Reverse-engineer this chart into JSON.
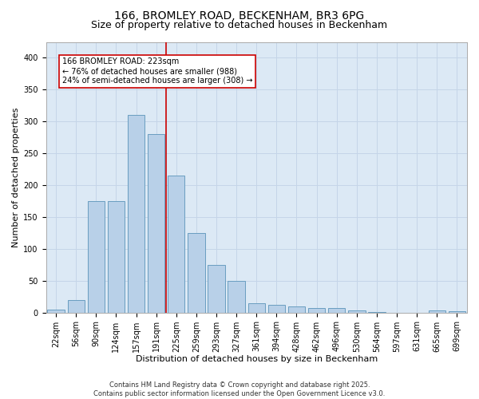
{
  "title_line1": "166, BROMLEY ROAD, BECKENHAM, BR3 6PG",
  "title_line2": "Size of property relative to detached houses in Beckenham",
  "xlabel": "Distribution of detached houses by size in Beckenham",
  "ylabel": "Number of detached properties",
  "categories": [
    "22sqm",
    "56sqm",
    "90sqm",
    "124sqm",
    "157sqm",
    "191sqm",
    "225sqm",
    "259sqm",
    "293sqm",
    "327sqm",
    "361sqm",
    "394sqm",
    "428sqm",
    "462sqm",
    "496sqm",
    "530sqm",
    "564sqm",
    "597sqm",
    "631sqm",
    "665sqm",
    "699sqm"
  ],
  "values": [
    5,
    20,
    175,
    175,
    310,
    280,
    215,
    125,
    75,
    50,
    14,
    12,
    10,
    7,
    7,
    3,
    1,
    0,
    0,
    3,
    2
  ],
  "bar_color": "#b8d0e8",
  "bar_edge_color": "#6a9ec0",
  "vline_color": "#cc0000",
  "annotation_text": "166 BROMLEY ROAD: 223sqm\n← 76% of detached houses are smaller (988)\n24% of semi-detached houses are larger (308) →",
  "annotation_box_color": "white",
  "annotation_box_edge_color": "#cc0000",
  "ylim": [
    0,
    425
  ],
  "yticks": [
    0,
    50,
    100,
    150,
    200,
    250,
    300,
    350,
    400
  ],
  "grid_color": "#c5d5e8",
  "background_color": "#dce9f5",
  "footer_text": "Contains HM Land Registry data © Crown copyright and database right 2025.\nContains public sector information licensed under the Open Government Licence v3.0.",
  "title_fontsize": 10,
  "subtitle_fontsize": 9,
  "axis_label_fontsize": 8,
  "tick_fontsize": 7,
  "annotation_fontsize": 7,
  "footer_fontsize": 6
}
